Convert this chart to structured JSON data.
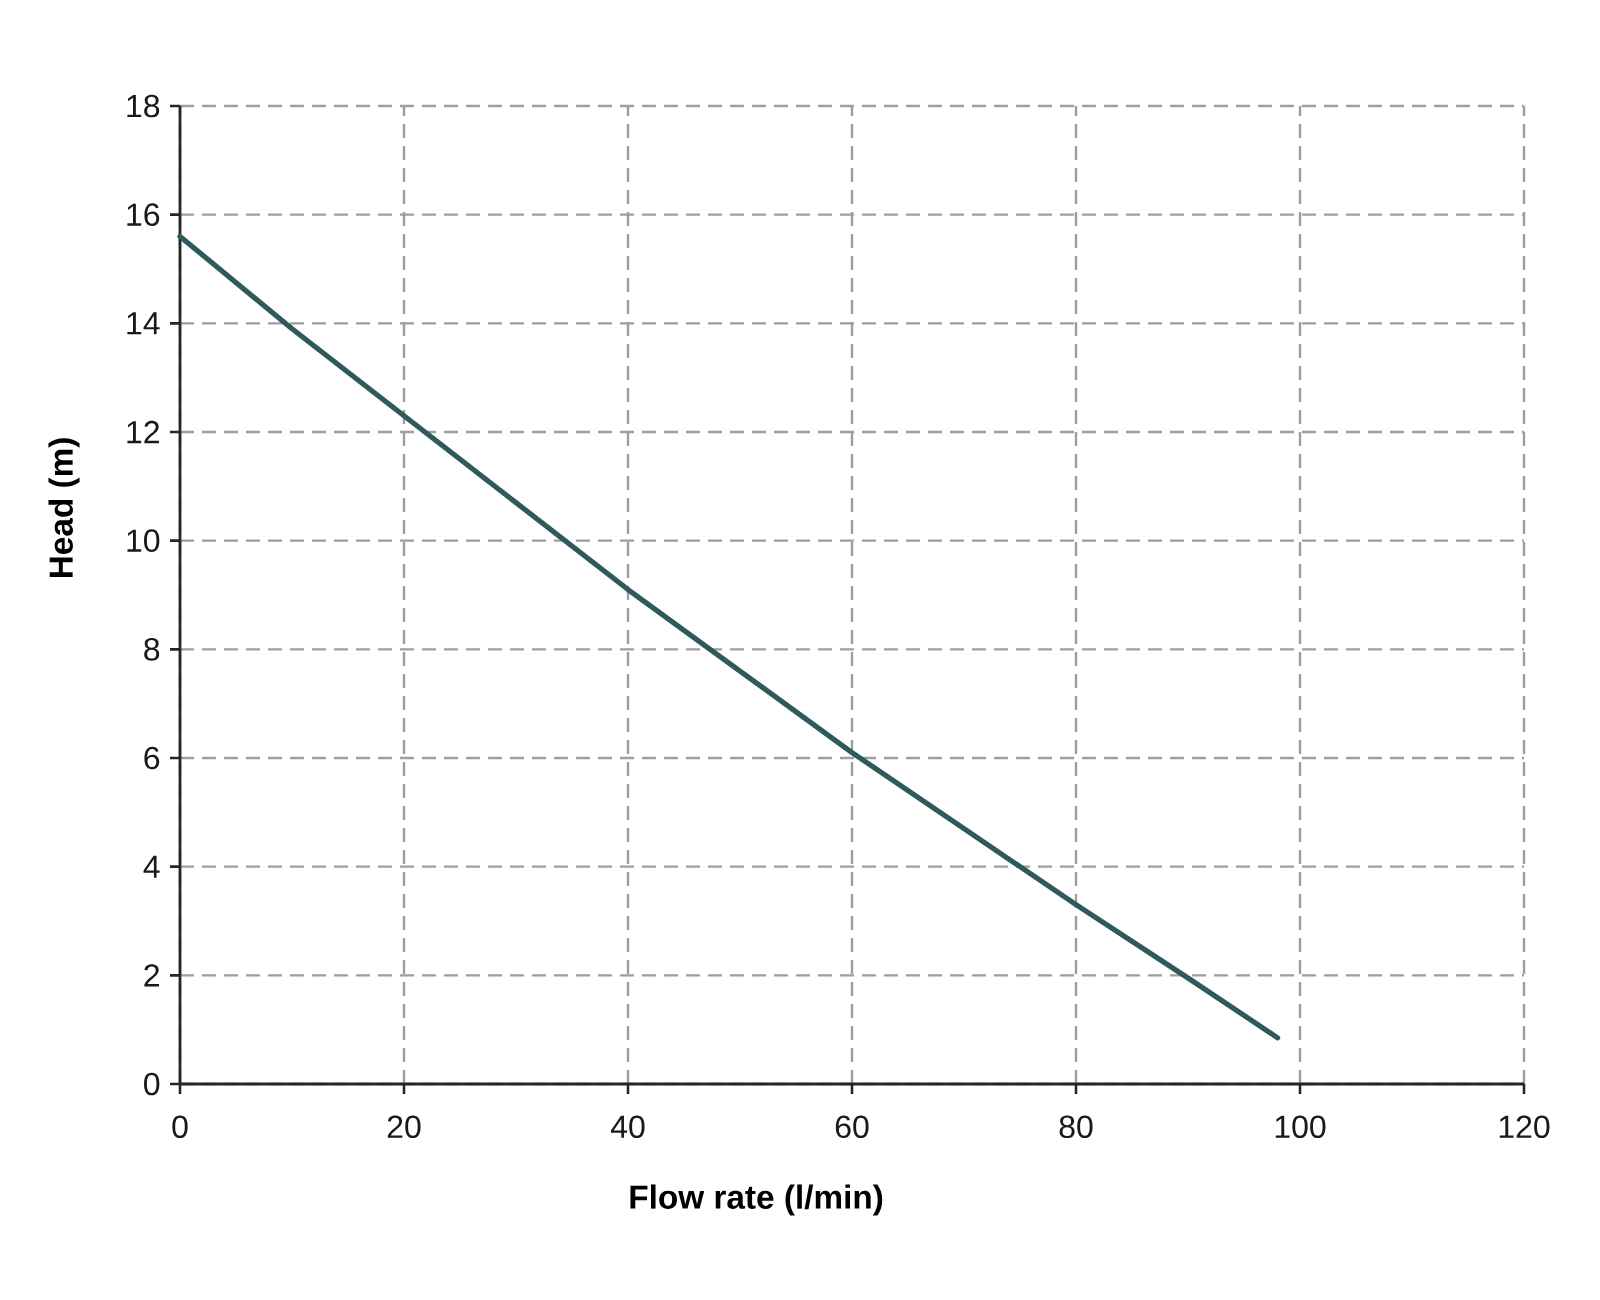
{
  "chart_data": {
    "type": "line",
    "xlabel": "Flow rate (l/min)",
    "ylabel": "Head (m)",
    "x": [
      0,
      10,
      20,
      30,
      40,
      50,
      60,
      70,
      80,
      90,
      98
    ],
    "series": [
      {
        "color": "#2e5a5c",
        "values": [
          15.6,
          13.9,
          12.3,
          10.7,
          9.1,
          7.6,
          6.1,
          4.7,
          3.3,
          1.95,
          0.85
        ],
        "line_style": "solid"
      }
    ],
    "xlim": [
      0,
      120
    ],
    "ylim": [
      0,
      18
    ],
    "xticks": [
      0,
      20,
      40,
      60,
      80,
      100,
      120
    ],
    "yticks": [
      0,
      2,
      4,
      6,
      8,
      10,
      12,
      14,
      16,
      18
    ],
    "grid": true
  }
}
